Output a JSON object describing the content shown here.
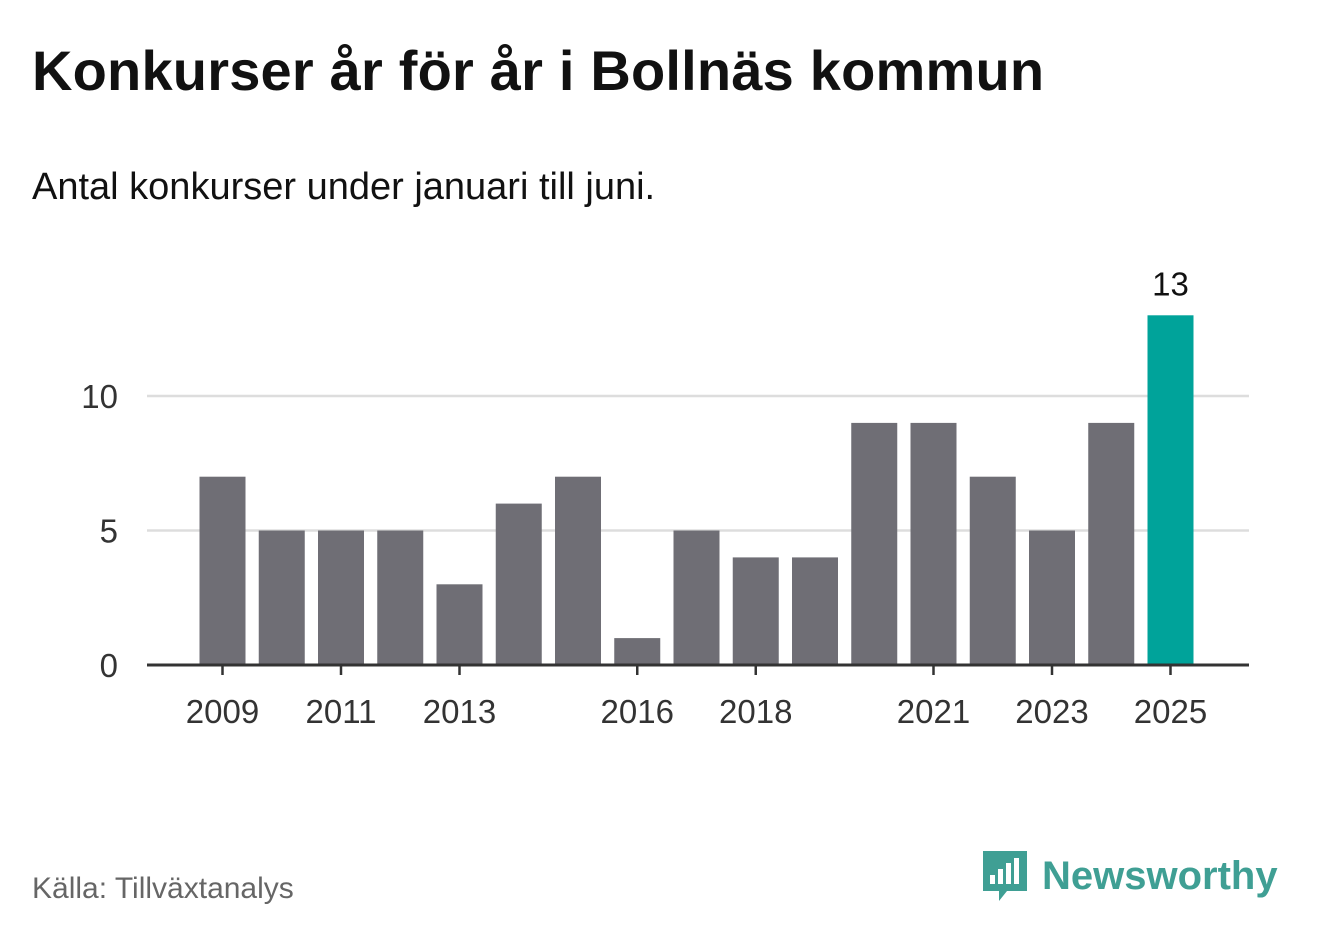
{
  "header": {
    "title": "Konkurser år för år i Bollnäs kommun",
    "subtitle": "Antal konkurser under januari till juni."
  },
  "footer": {
    "source": "Källa: Tillväxtanalys",
    "brand": "Newsworthy"
  },
  "colors": {
    "bar": "#6f6e75",
    "highlight": "#00a39a",
    "grid": "#dddddd",
    "axis": "#333333",
    "brand": "#3f9f94"
  },
  "icons": {
    "brand_logo": "bar-chart-speech-bubble-icon"
  },
  "chart_data": {
    "type": "bar",
    "title": "Konkurser år för år i Bollnäs kommun",
    "subtitle": "Antal konkurser under januari till juni.",
    "categories": [
      "2009",
      "2010",
      "2011",
      "2012",
      "2013",
      "2014",
      "2015",
      "2016",
      "2017",
      "2018",
      "2019",
      "2020",
      "2021",
      "2022",
      "2023",
      "2024",
      "2025"
    ],
    "values": [
      7,
      5,
      5,
      5,
      3,
      6,
      7,
      1,
      5,
      4,
      4,
      9,
      9,
      7,
      5,
      9,
      13
    ],
    "highlight_index": 16,
    "data_labels": [
      {
        "index": 16,
        "text": "13"
      }
    ],
    "x_tick_labels": [
      "2009",
      "2011",
      "2013",
      "2016",
      "2018",
      "2021",
      "2023",
      "2025"
    ],
    "y_ticks": [
      0,
      5,
      10
    ],
    "ylim": [
      0,
      13
    ],
    "xlabel": "",
    "ylabel": "",
    "grid": true,
    "legend": "none"
  }
}
